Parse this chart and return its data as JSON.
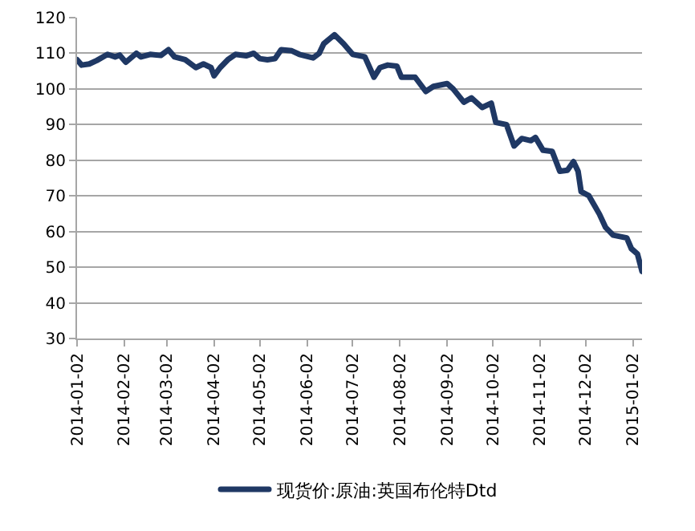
{
  "chart_data": {
    "type": "line",
    "legend": "bottom",
    "grid": "y",
    "marker": "none",
    "line_style": "solid",
    "xlim": [
      "2014-01-02",
      "2015-01-08"
    ],
    "xticks": [
      "2014-01-02",
      "2014-02-02",
      "2014-03-02",
      "2014-04-02",
      "2014-05-02",
      "2014-06-02",
      "2014-07-02",
      "2014-08-02",
      "2014-09-02",
      "2014-10-02",
      "2014-11-02",
      "2014-12-02",
      "2015-01-02"
    ],
    "ylim": [
      30,
      120
    ],
    "yticks": [
      30,
      40,
      50,
      60,
      70,
      80,
      90,
      100,
      110,
      120
    ],
    "x": [
      "2014-01-02",
      "2014-01-05",
      "2014-01-10",
      "2014-01-15",
      "2014-01-22",
      "2014-01-27",
      "2014-01-30",
      "2014-02-03",
      "2014-02-10",
      "2014-02-13",
      "2014-02-19",
      "2014-02-26",
      "2014-03-03",
      "2014-03-07",
      "2014-03-14",
      "2014-03-21",
      "2014-03-26",
      "2014-03-31",
      "2014-04-02",
      "2014-04-06",
      "2014-04-11",
      "2014-04-16",
      "2014-04-23",
      "2014-04-28",
      "2014-05-02",
      "2014-05-07",
      "2014-05-12",
      "2014-05-16",
      "2014-05-23",
      "2014-05-28",
      "2014-06-06",
      "2014-06-10",
      "2014-06-13",
      "2014-06-20",
      "2014-06-26",
      "2014-07-02",
      "2014-07-10",
      "2014-07-16",
      "2014-07-20",
      "2014-07-25",
      "2014-07-31",
      "2014-08-03",
      "2014-08-12",
      "2014-08-19",
      "2014-08-24",
      "2014-09-02",
      "2014-09-06",
      "2014-09-13",
      "2014-09-18",
      "2014-09-25",
      "2014-10-01",
      "2014-10-04",
      "2014-10-11",
      "2014-10-16",
      "2014-10-21",
      "2014-10-27",
      "2014-10-30",
      "2014-11-04",
      "2014-11-10",
      "2014-11-15",
      "2014-11-20",
      "2014-11-24",
      "2014-11-27",
      "2014-11-29",
      "2014-12-04",
      "2014-12-11",
      "2014-12-15",
      "2014-12-20",
      "2014-12-29",
      "2015-01-01",
      "2015-01-05",
      "2015-01-08"
    ],
    "series": [
      {
        "name": "现货价:原油:英国布伦特Dtd",
        "color": "#1f3864",
        "values": [
          108.2,
          106.7,
          107,
          108,
          109.7,
          109,
          109.5,
          107.5,
          110,
          109,
          109.7,
          109.4,
          111,
          109,
          108.2,
          106,
          107,
          106,
          103.7,
          106,
          108.2,
          109.7,
          109.3,
          110,
          108.5,
          108.2,
          108.5,
          111,
          110.7,
          109.7,
          108.7,
          110,
          112.7,
          115.2,
          112.7,
          109.7,
          109,
          103.3,
          106,
          106.7,
          106.4,
          103.3,
          103.3,
          99.3,
          100.7,
          101.5,
          100,
          96.3,
          97.5,
          94.8,
          96,
          90.6,
          90,
          84,
          86.1,
          85.5,
          86.4,
          82.8,
          82.5,
          76.9,
          77.2,
          79.6,
          76.9,
          71.2,
          70.1,
          64.9,
          61.2,
          59,
          58.2,
          55.2,
          53.7,
          48.8
        ]
      }
    ]
  }
}
